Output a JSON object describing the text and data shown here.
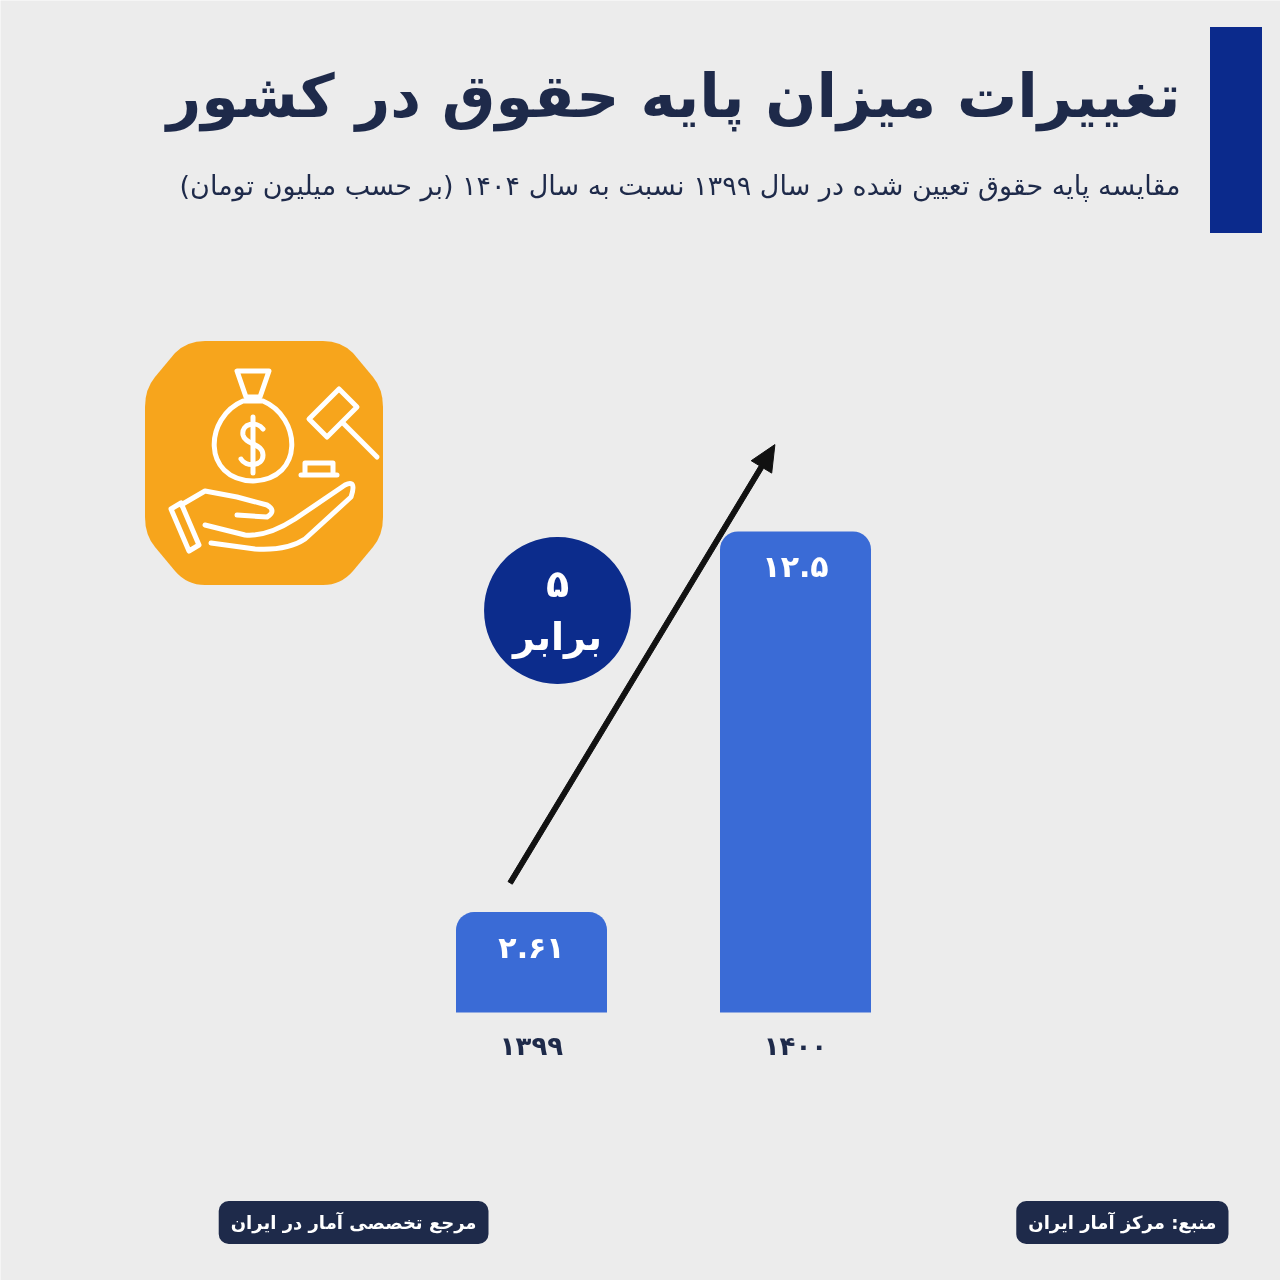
{
  "chart_data": {
    "type": "bar",
    "title": "تغییرات میزان پایه حقوق در کشور",
    "subtitle": "مقایسه پایه حقوق تعیین شده در سال ۱۳۹۹ نسبت به سال ۱۴۰۴ (بر حسب میلیون تومان)",
    "categories": [
      "۱۳۹۹",
      "۱۴۰۰"
    ],
    "values": [
      2.61,
      12.5
    ],
    "color": "#3a6bd6",
    "value_labels": [
      "۲.۶۱",
      "۱۲.۵"
    ],
    "annotations": [
      "۵ برابر",
      "مرجع تخصصی آمار در ایران",
      "منبع: مرکز آمار ایران"
    ]
  }
}
